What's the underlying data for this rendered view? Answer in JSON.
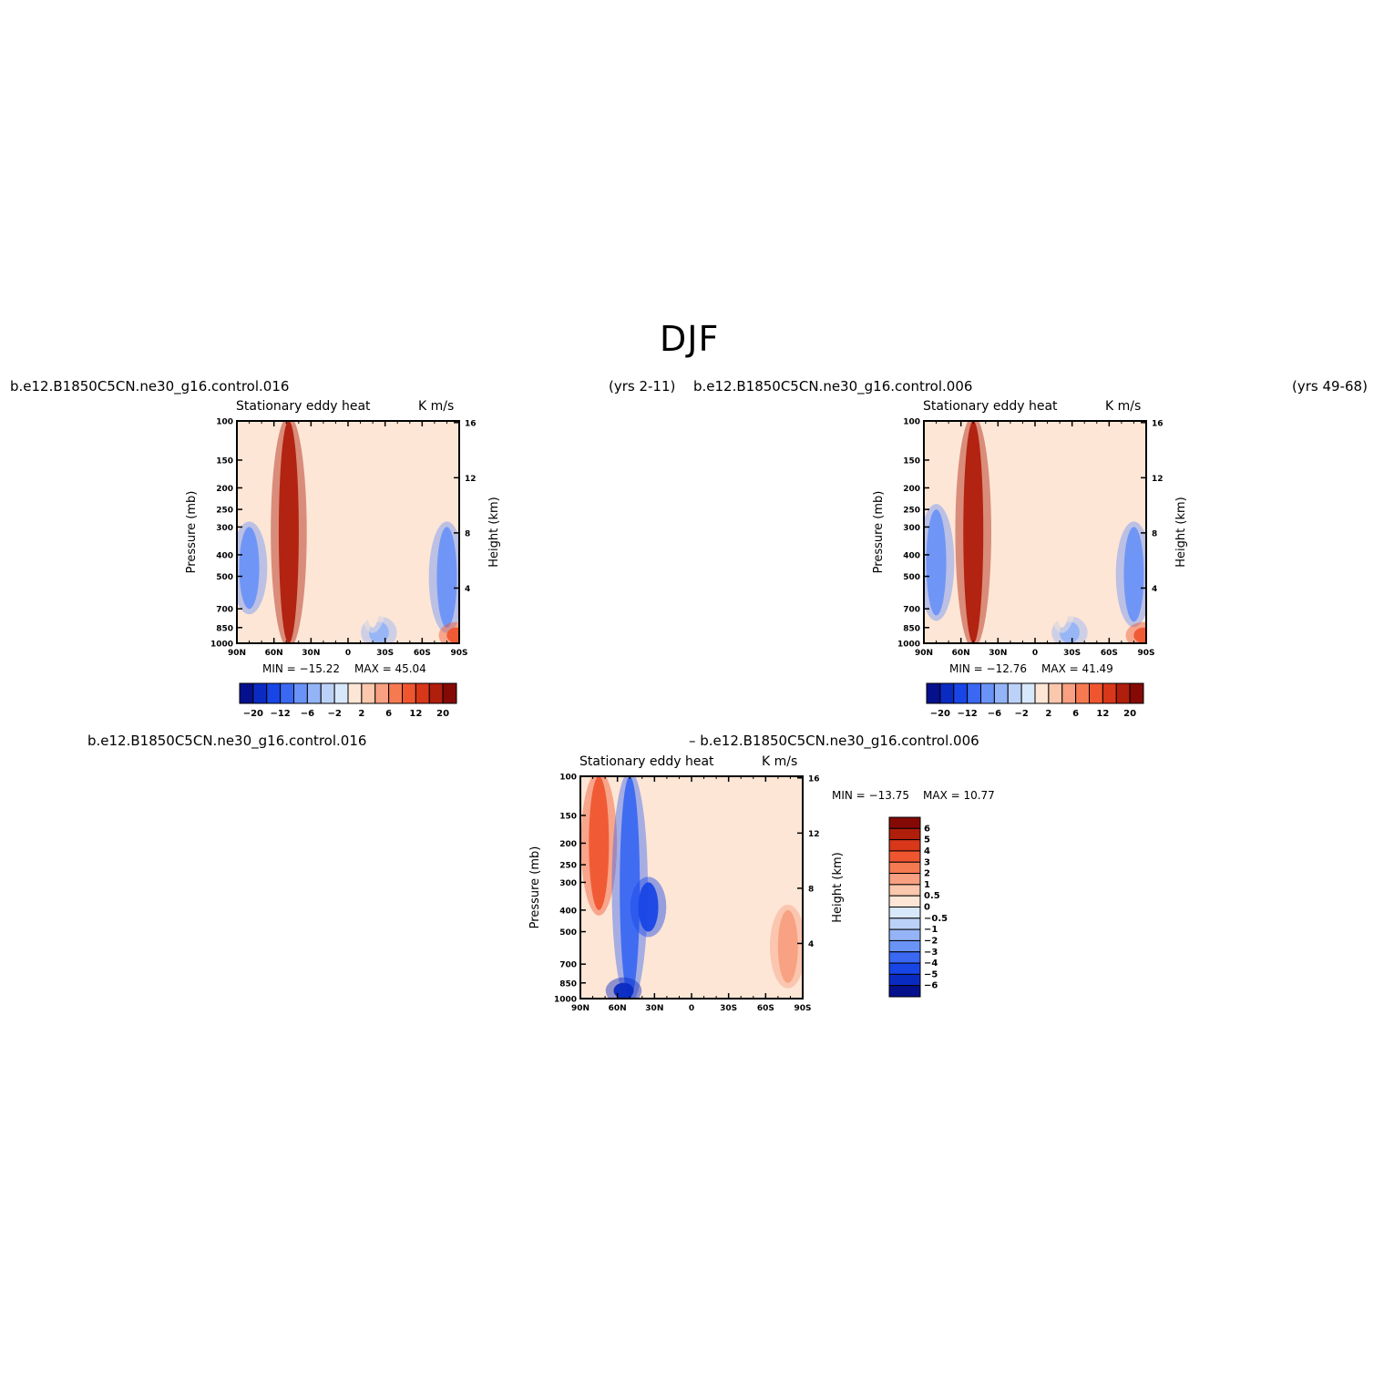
{
  "figure": {
    "title": "DJF",
    "top_left_case": "b.e12.B1850C5CN.ne30_g16.control.016",
    "top_left_years": "(yrs 2-11)",
    "top_right_case": "b.e12.B1850C5CN.ne30_g16.control.006",
    "top_right_years": "(yrs 49-68)",
    "diff_case_a": "b.e12.B1850C5CN.ne30_g16.control.016",
    "diff_case_b": "– b.e12.B1850C5CN.ne30_g16.control.006"
  },
  "chart_data": [
    {
      "type": "heatmap",
      "id": "panel-016",
      "variable": "Stationary eddy heat",
      "units": "K m/s",
      "ylabel": "Pressure (mb)",
      "y2label": "Height (km)",
      "x_ticks": [
        "90N",
        "60N",
        "30N",
        "0",
        "30S",
        "60S",
        "90S"
      ],
      "xlim": [
        90,
        -90
      ],
      "y_ticks": [
        100,
        150,
        200,
        250,
        300,
        400,
        500,
        700,
        850,
        1000
      ],
      "ylim": [
        100,
        1000
      ],
      "yscale": "log",
      "y2_ticks": [
        4,
        8,
        12,
        16
      ],
      "min_label": "MIN = −15.22",
      "max_label": "MAX =   45.04",
      "min": -15.22,
      "max": 45.04,
      "colorbar_levels": [
        -20,
        -16,
        -12,
        -8,
        -6,
        -4,
        -2,
        -1,
        1,
        2,
        4,
        6,
        8,
        12,
        16,
        20
      ],
      "colorbar_tick_labels": [
        "−20",
        "−12",
        "−6",
        "−2",
        "2",
        "6",
        "12",
        "20"
      ],
      "features": [
        {
          "lat": 48,
          "p_top": 100,
          "p_bottom": 1000,
          "value": 20
        },
        {
          "lat": 80,
          "p_top": 300,
          "p_bottom": 700,
          "value": -6
        },
        {
          "lat": -80,
          "p_top": 300,
          "p_bottom": 850,
          "value": -6
        },
        {
          "lat": -25,
          "p_top": 800,
          "p_bottom": 1000,
          "value": -4
        },
        {
          "lat": -20,
          "p_top": 250,
          "p_bottom": 850,
          "value": 1
        },
        {
          "lat": -88,
          "p_top": 850,
          "p_bottom": 1000,
          "value": 12
        }
      ]
    },
    {
      "type": "heatmap",
      "id": "panel-006",
      "variable": "Stationary eddy heat",
      "units": "K m/s",
      "ylabel": "Pressure (mb)",
      "y2label": "Height (km)",
      "x_ticks": [
        "90N",
        "60N",
        "30N",
        "0",
        "30S",
        "60S",
        "90S"
      ],
      "xlim": [
        90,
        -90
      ],
      "y_ticks": [
        100,
        150,
        200,
        250,
        300,
        400,
        500,
        700,
        850,
        1000
      ],
      "ylim": [
        100,
        1000
      ],
      "yscale": "log",
      "y2_ticks": [
        4,
        8,
        12,
        16
      ],
      "min_label": "MIN = −12.76",
      "max_label": "MAX =   41.49",
      "min": -12.76,
      "max": 41.49,
      "colorbar_levels": [
        -20,
        -16,
        -12,
        -8,
        -6,
        -4,
        -2,
        -1,
        1,
        2,
        4,
        6,
        8,
        12,
        16,
        20
      ],
      "colorbar_tick_labels": [
        "−20",
        "−12",
        "−6",
        "−2",
        "2",
        "6",
        "12",
        "20"
      ],
      "features": [
        {
          "lat": 50,
          "p_top": 100,
          "p_bottom": 1000,
          "value": 20
        },
        {
          "lat": 80,
          "p_top": 250,
          "p_bottom": 750,
          "value": -6
        },
        {
          "lat": -80,
          "p_top": 300,
          "p_bottom": 800,
          "value": -6
        },
        {
          "lat": -28,
          "p_top": 800,
          "p_bottom": 1000,
          "value": -4
        },
        {
          "lat": -22,
          "p_top": 250,
          "p_bottom": 850,
          "value": 1
        },
        {
          "lat": -88,
          "p_top": 850,
          "p_bottom": 1000,
          "value": 12
        }
      ]
    },
    {
      "type": "heatmap",
      "id": "panel-diff",
      "variable": "Stationary eddy heat",
      "units": "K m/s",
      "ylabel": "Pressure (mb)",
      "y2label": "Height (km)",
      "x_ticks": [
        "90N",
        "60N",
        "30N",
        "0",
        "30S",
        "60S",
        "90S"
      ],
      "xlim": [
        90,
        -90
      ],
      "y_ticks": [
        100,
        150,
        200,
        250,
        300,
        400,
        500,
        700,
        850,
        1000
      ],
      "ylim": [
        100,
        1000
      ],
      "yscale": "log",
      "y2_ticks": [
        4,
        8,
        12,
        16
      ],
      "min_label": "MIN = −13.75",
      "max_label": "MAX =   10.77",
      "min": -13.75,
      "max": 10.77,
      "colorbar_levels": [
        -6,
        -5,
        -4,
        -3,
        -2,
        -1,
        -0.5,
        0,
        0.5,
        1,
        2,
        3,
        4,
        5,
        6
      ],
      "colorbar_tick_labels": [
        "6",
        "5",
        "4",
        "3",
        "2",
        "1",
        "0.5",
        "0",
        "−0.5",
        "−1",
        "−2",
        "−3",
        "−4",
        "−5",
        "−6"
      ],
      "features": [
        {
          "lat": 75,
          "p_top": 100,
          "p_bottom": 400,
          "value": 4
        },
        {
          "lat": 50,
          "p_top": 100,
          "p_bottom": 1000,
          "value": -3
        },
        {
          "lat": 55,
          "p_top": 850,
          "p_bottom": 1000,
          "value": -5
        },
        {
          "lat": 35,
          "p_top": 300,
          "p_bottom": 500,
          "value": -4
        },
        {
          "lat": -78,
          "p_top": 400,
          "p_bottom": 850,
          "value": 2
        },
        {
          "lat": -15,
          "p_top": 100,
          "p_bottom": 1000,
          "value": 0.5
        }
      ]
    }
  ]
}
